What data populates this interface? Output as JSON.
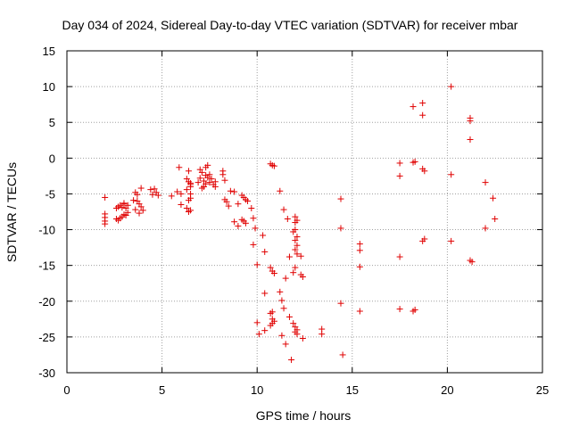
{
  "chart_data": {
    "type": "scatter",
    "title": "Day 034 of 2024, Sidereal Day-to-day VTEC variation (SDTVAR) for receiver mbar",
    "xlabel": "GPS time / hours",
    "ylabel": "SDTVAR / TECUs",
    "xlim": [
      0,
      25
    ],
    "ylim": [
      -30,
      15
    ],
    "xticks": [
      0,
      5,
      10,
      15,
      20,
      25
    ],
    "yticks": [
      -30,
      -25,
      -20,
      -15,
      -10,
      -5,
      0,
      5,
      10,
      15
    ],
    "xtick_labels": [
      "0",
      "5",
      "10",
      "15",
      "20",
      "25"
    ],
    "ytick_labels": [
      "-30",
      "-25",
      "-20",
      "-15",
      "-10",
      "-5",
      "0",
      "5",
      "10",
      "15"
    ],
    "grid": true,
    "marker": "+",
    "color": "#e00000",
    "series": [
      {
        "name": "SDTVAR",
        "points": [
          [
            2.0,
            -5.5
          ],
          [
            2.0,
            -7.8
          ],
          [
            2.0,
            -8.3
          ],
          [
            2.0,
            -8.8
          ],
          [
            2.0,
            -9.2
          ],
          [
            2.6,
            -7.0
          ],
          [
            2.6,
            -8.5
          ],
          [
            2.7,
            -6.8
          ],
          [
            2.7,
            -8.7
          ],
          [
            2.8,
            -6.6
          ],
          [
            2.8,
            -8.4
          ],
          [
            2.9,
            -6.9
          ],
          [
            2.9,
            -8.2
          ],
          [
            3.0,
            -6.4
          ],
          [
            3.0,
            -7.9
          ],
          [
            3.0,
            -6.3
          ],
          [
            3.1,
            -7.0
          ],
          [
            3.1,
            -8.0
          ],
          [
            3.2,
            -7.6
          ],
          [
            3.2,
            -6.6
          ],
          [
            3.5,
            -5.9
          ],
          [
            3.6,
            -7.2
          ],
          [
            3.6,
            -4.8
          ],
          [
            3.7,
            -6.0
          ],
          [
            3.7,
            -5.1
          ],
          [
            3.8,
            -6.4
          ],
          [
            3.8,
            -7.7
          ],
          [
            3.9,
            -6.8
          ],
          [
            3.9,
            -4.2
          ],
          [
            4.0,
            -7.3
          ],
          [
            4.4,
            -4.4
          ],
          [
            4.5,
            -5.1
          ],
          [
            4.6,
            -4.3
          ],
          [
            4.7,
            -4.8
          ],
          [
            4.8,
            -5.2
          ],
          [
            5.5,
            -5.3
          ],
          [
            5.8,
            -4.7
          ],
          [
            5.9,
            -1.3
          ],
          [
            6.0,
            -5.0
          ],
          [
            6.0,
            -6.5
          ],
          [
            6.3,
            -2.9
          ],
          [
            6.3,
            -4.4
          ],
          [
            6.3,
            -7.0
          ],
          [
            6.4,
            -3.3
          ],
          [
            6.4,
            -5.9
          ],
          [
            6.4,
            -7.5
          ],
          [
            6.5,
            -3.7
          ],
          [
            6.5,
            -5.6
          ],
          [
            6.5,
            -3.5
          ],
          [
            6.5,
            -7.3
          ],
          [
            6.4,
            -1.8
          ],
          [
            6.5,
            -4.0
          ],
          [
            6.5,
            -5.0
          ],
          [
            6.9,
            -3.4
          ],
          [
            7.0,
            -1.6
          ],
          [
            7.0,
            -2.8
          ],
          [
            7.1,
            -4.2
          ],
          [
            7.1,
            -2.0
          ],
          [
            7.2,
            -3.2
          ],
          [
            7.2,
            -4.0
          ],
          [
            7.3,
            -1.3
          ],
          [
            7.3,
            -2.4
          ],
          [
            7.3,
            -3.6
          ],
          [
            7.4,
            -1.0
          ],
          [
            7.4,
            -2.7
          ],
          [
            7.5,
            -2.3
          ],
          [
            7.5,
            -3.4
          ],
          [
            7.6,
            -2.9
          ],
          [
            7.7,
            -3.7
          ],
          [
            7.8,
            -4.0
          ],
          [
            7.8,
            -3.3
          ],
          [
            8.2,
            -1.8
          ],
          [
            8.2,
            -2.3
          ],
          [
            8.3,
            -3.1
          ],
          [
            8.3,
            -5.8
          ],
          [
            8.4,
            -6.1
          ],
          [
            8.5,
            -6.7
          ],
          [
            8.6,
            -4.6
          ],
          [
            8.8,
            -4.7
          ],
          [
            8.8,
            -8.9
          ],
          [
            9.0,
            -6.4
          ],
          [
            9.0,
            -9.5
          ],
          [
            9.2,
            -5.2
          ],
          [
            9.2,
            -8.6
          ],
          [
            9.3,
            -5.5
          ],
          [
            9.3,
            -8.8
          ],
          [
            9.4,
            -5.8
          ],
          [
            9.4,
            -9.1
          ],
          [
            9.5,
            -6.0
          ],
          [
            9.7,
            -7.0
          ],
          [
            9.8,
            -8.4
          ],
          [
            9.8,
            -12.1
          ],
          [
            9.9,
            -9.8
          ],
          [
            10.0,
            -14.9
          ],
          [
            10.0,
            -23.0
          ],
          [
            10.1,
            -24.6
          ],
          [
            10.3,
            -10.8
          ],
          [
            10.4,
            -13.1
          ],
          [
            10.4,
            -18.9
          ],
          [
            10.4,
            -24.1
          ],
          [
            10.7,
            -0.8
          ],
          [
            10.7,
            -15.3
          ],
          [
            10.7,
            -21.7
          ],
          [
            10.7,
            -23.4
          ],
          [
            10.8,
            -1.0
          ],
          [
            10.8,
            -15.8
          ],
          [
            10.8,
            -21.5
          ],
          [
            10.8,
            -22.5
          ],
          [
            10.8,
            -23.1
          ],
          [
            10.9,
            -1.1
          ],
          [
            10.9,
            -16.1
          ],
          [
            10.9,
            -22.8
          ],
          [
            11.2,
            -4.6
          ],
          [
            11.2,
            -18.7
          ],
          [
            11.3,
            -19.9
          ],
          [
            11.3,
            -24.8
          ],
          [
            11.4,
            -7.2
          ],
          [
            11.4,
            -21.0
          ],
          [
            11.5,
            -26.0
          ],
          [
            11.5,
            -16.8
          ],
          [
            11.6,
            -8.5
          ],
          [
            11.7,
            -13.8
          ],
          [
            11.7,
            -22.2
          ],
          [
            11.8,
            -28.2
          ],
          [
            11.9,
            -10.3
          ],
          [
            11.9,
            -16.0
          ],
          [
            11.9,
            -23.1
          ],
          [
            12.0,
            -8.2
          ],
          [
            12.0,
            -9.0
          ],
          [
            12.0,
            -10.0
          ],
          [
            12.0,
            -11.5
          ],
          [
            12.0,
            -12.8
          ],
          [
            12.0,
            -15.3
          ],
          [
            12.0,
            -23.6
          ],
          [
            12.0,
            -24.3
          ],
          [
            12.1,
            -8.7
          ],
          [
            12.1,
            -11.0
          ],
          [
            12.1,
            -12.2
          ],
          [
            12.1,
            -13.4
          ],
          [
            12.1,
            -24.0
          ],
          [
            12.1,
            -24.6
          ],
          [
            12.3,
            -13.7
          ],
          [
            12.3,
            -16.3
          ],
          [
            12.4,
            -16.6
          ],
          [
            12.4,
            -25.2
          ],
          [
            13.4,
            -23.9
          ],
          [
            13.4,
            -24.6
          ],
          [
            14.4,
            -5.7
          ],
          [
            14.4,
            -9.8
          ],
          [
            14.4,
            -20.3
          ],
          [
            14.5,
            -27.5
          ],
          [
            15.4,
            -12.0
          ],
          [
            15.4,
            -12.9
          ],
          [
            15.4,
            -15.2
          ],
          [
            15.4,
            -21.4
          ],
          [
            17.5,
            -0.7
          ],
          [
            17.5,
            -2.5
          ],
          [
            17.5,
            -13.8
          ],
          [
            17.5,
            -21.1
          ],
          [
            18.2,
            7.2
          ],
          [
            18.2,
            -0.6
          ],
          [
            18.2,
            -21.4
          ],
          [
            18.3,
            -0.5
          ],
          [
            18.3,
            -21.2
          ],
          [
            18.7,
            7.7
          ],
          [
            18.7,
            6.0
          ],
          [
            18.7,
            -1.5
          ],
          [
            18.7,
            -11.6
          ],
          [
            18.8,
            -11.3
          ],
          [
            18.8,
            -1.8
          ],
          [
            20.2,
            10.0
          ],
          [
            20.2,
            -2.3
          ],
          [
            20.2,
            -11.6
          ],
          [
            21.2,
            5.6
          ],
          [
            21.2,
            5.2
          ],
          [
            21.2,
            2.6
          ],
          [
            21.2,
            -14.3
          ],
          [
            21.3,
            -14.5
          ],
          [
            22.0,
            -3.4
          ],
          [
            22.0,
            -9.8
          ],
          [
            22.4,
            -5.6
          ],
          [
            22.5,
            -8.5
          ]
        ]
      }
    ]
  }
}
